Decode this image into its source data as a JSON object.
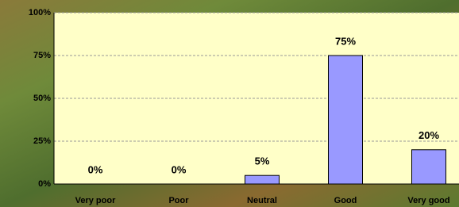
{
  "chart_data": {
    "type": "bar",
    "categories": [
      "Very poor",
      "Poor",
      "Neutral",
      "Good",
      "Very good"
    ],
    "values": [
      0,
      0,
      5,
      75,
      20
    ],
    "value_labels": [
      "0%",
      "0%",
      "5%",
      "75%",
      "20%"
    ],
    "color": "#9999ff",
    "ylim": [
      0,
      100
    ],
    "yticks": [
      {
        "value": 0,
        "label": "0%"
      },
      {
        "value": 25,
        "label": "25%"
      },
      {
        "value": 50,
        "label": "50%"
      },
      {
        "value": 75,
        "label": "75%"
      },
      {
        "value": 100,
        "label": "100%"
      }
    ],
    "grid": true
  }
}
